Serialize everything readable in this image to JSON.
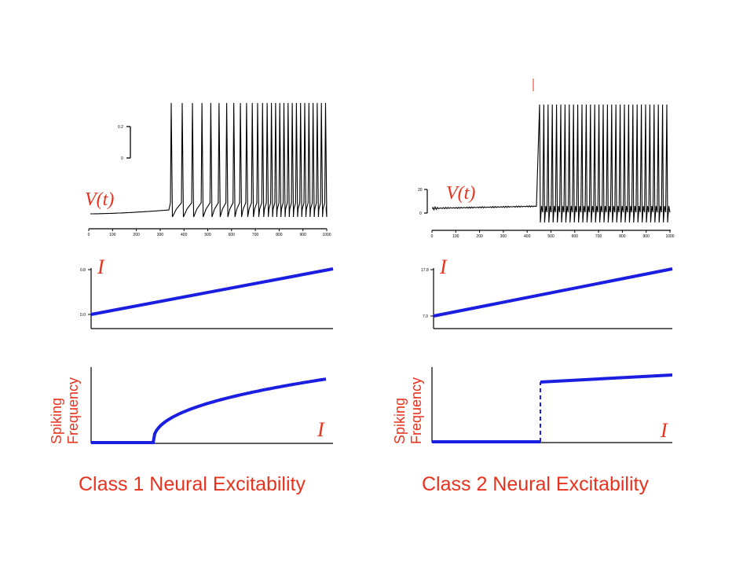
{
  "colors": {
    "label": "#e8321e",
    "curve": "#1a1ee0",
    "trace": "#000000"
  },
  "class1": {
    "caption": "Class 1 Neural Excitability",
    "voltage": {
      "label": "V(t)",
      "scale_top": "0.2",
      "scale_bottom": "0",
      "x_ticks": [
        "0",
        "100",
        "200",
        "300",
        "400",
        "500",
        "600",
        "700",
        "800",
        "900",
        "1000"
      ]
    },
    "current": {
      "label": "I",
      "y_top": "0.8",
      "y_bottom": "0.0"
    },
    "fi": {
      "ylabel_line1": "Spiking",
      "ylabel_line2": "Frequency",
      "xlabel": "I"
    }
  },
  "class2": {
    "caption": "Class 2 Neural Excitability",
    "voltage": {
      "label": "V(t)",
      "scale_top": "20",
      "scale_bottom": "0",
      "x_ticks": [
        "0",
        "100",
        "200",
        "300",
        "400",
        "500",
        "600",
        "700",
        "800",
        "900",
        "1000"
      ]
    },
    "current": {
      "label": "I",
      "y_top": "17.8",
      "y_bottom": "7.0"
    },
    "fi": {
      "ylabel_line1": "Spiking",
      "ylabel_line2": "Frequency",
      "xlabel": "I"
    }
  }
}
